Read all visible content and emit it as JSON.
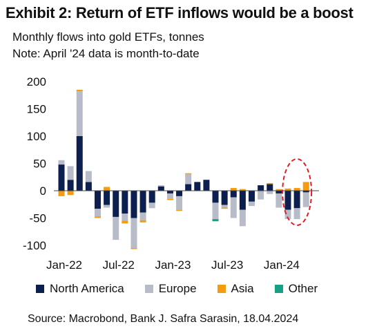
{
  "header": {
    "title": "Exhibit 2: Return of ETF inflows would be a boost",
    "subtitle_line1": "Monthly flows into gold ETFs, tonnes",
    "subtitle_line2": "Note: April '24 data is month-to-date"
  },
  "footer": {
    "source": "Source: Macrobond, Bank J. Safra Sarasin, 18.04.2024"
  },
  "colors": {
    "north_america": "#0d1f4f",
    "europe": "#b8bcc9",
    "asia": "#f39c12",
    "other": "#16a085",
    "highlight": "#e31b23"
  },
  "chart_data": {
    "type": "bar",
    "stacked": true,
    "categories": [
      "Jan-22",
      "Feb-22",
      "Mar-22",
      "Apr-22",
      "May-22",
      "Jun-22",
      "Jul-22",
      "Aug-22",
      "Sep-22",
      "Oct-22",
      "Nov-22",
      "Dec-22",
      "Jan-23",
      "Feb-23",
      "Mar-23",
      "Apr-23",
      "May-23",
      "Jun-23",
      "Jul-23",
      "Aug-23",
      "Sep-23",
      "Oct-23",
      "Nov-23",
      "Dec-23",
      "Jan-24",
      "Feb-24",
      "Mar-24",
      "Apr-24"
    ],
    "x_tick_labels": [
      "Jan-22",
      "Jul-22",
      "Jan-23",
      "Jul-23",
      "Jan-24"
    ],
    "series": [
      {
        "name": "North America",
        "color": "#0d1f4f",
        "values": [
          48,
          20,
          100,
          16,
          -33,
          -26,
          -48,
          -42,
          -50,
          -40,
          -22,
          8,
          -5,
          -10,
          12,
          16,
          20,
          -22,
          -26,
          -12,
          -35,
          -20,
          10,
          12,
          -5,
          -35,
          -32,
          -3
        ]
      },
      {
        "name": "Europe",
        "color": "#b8bcc9",
        "values": [
          8,
          25,
          82,
          20,
          -14,
          -5,
          -42,
          -13,
          -55,
          -14,
          -10,
          2,
          -10,
          -25,
          18,
          0,
          0,
          -30,
          -5,
          -38,
          -30,
          -8,
          -16,
          -6,
          -26,
          -17,
          -20,
          -27
        ]
      },
      {
        "name": "Asia",
        "color": "#f39c12",
        "values": [
          -10,
          -8,
          3,
          0,
          -3,
          7,
          0,
          -5,
          -2,
          -4,
          0,
          0,
          -2,
          -2,
          2,
          0,
          0,
          0,
          -2,
          5,
          3,
          0,
          0,
          2,
          3,
          4,
          5,
          16
        ]
      },
      {
        "name": "Other",
        "color": "#16a085",
        "values": [
          0,
          0,
          0,
          0,
          0,
          0,
          0,
          0,
          0,
          0,
          0,
          0,
          0,
          0,
          0,
          0,
          0,
          -4,
          0,
          0,
          0,
          0,
          0,
          0,
          0,
          0,
          0,
          0
        ]
      }
    ],
    "y_ticks": [
      200,
      150,
      100,
      50,
      0,
      -50,
      -100
    ],
    "ylim": [
      -100,
      200
    ],
    "legend_position": "bottom",
    "highlight": "dashed red ellipse around Feb-24 to Apr-24"
  }
}
